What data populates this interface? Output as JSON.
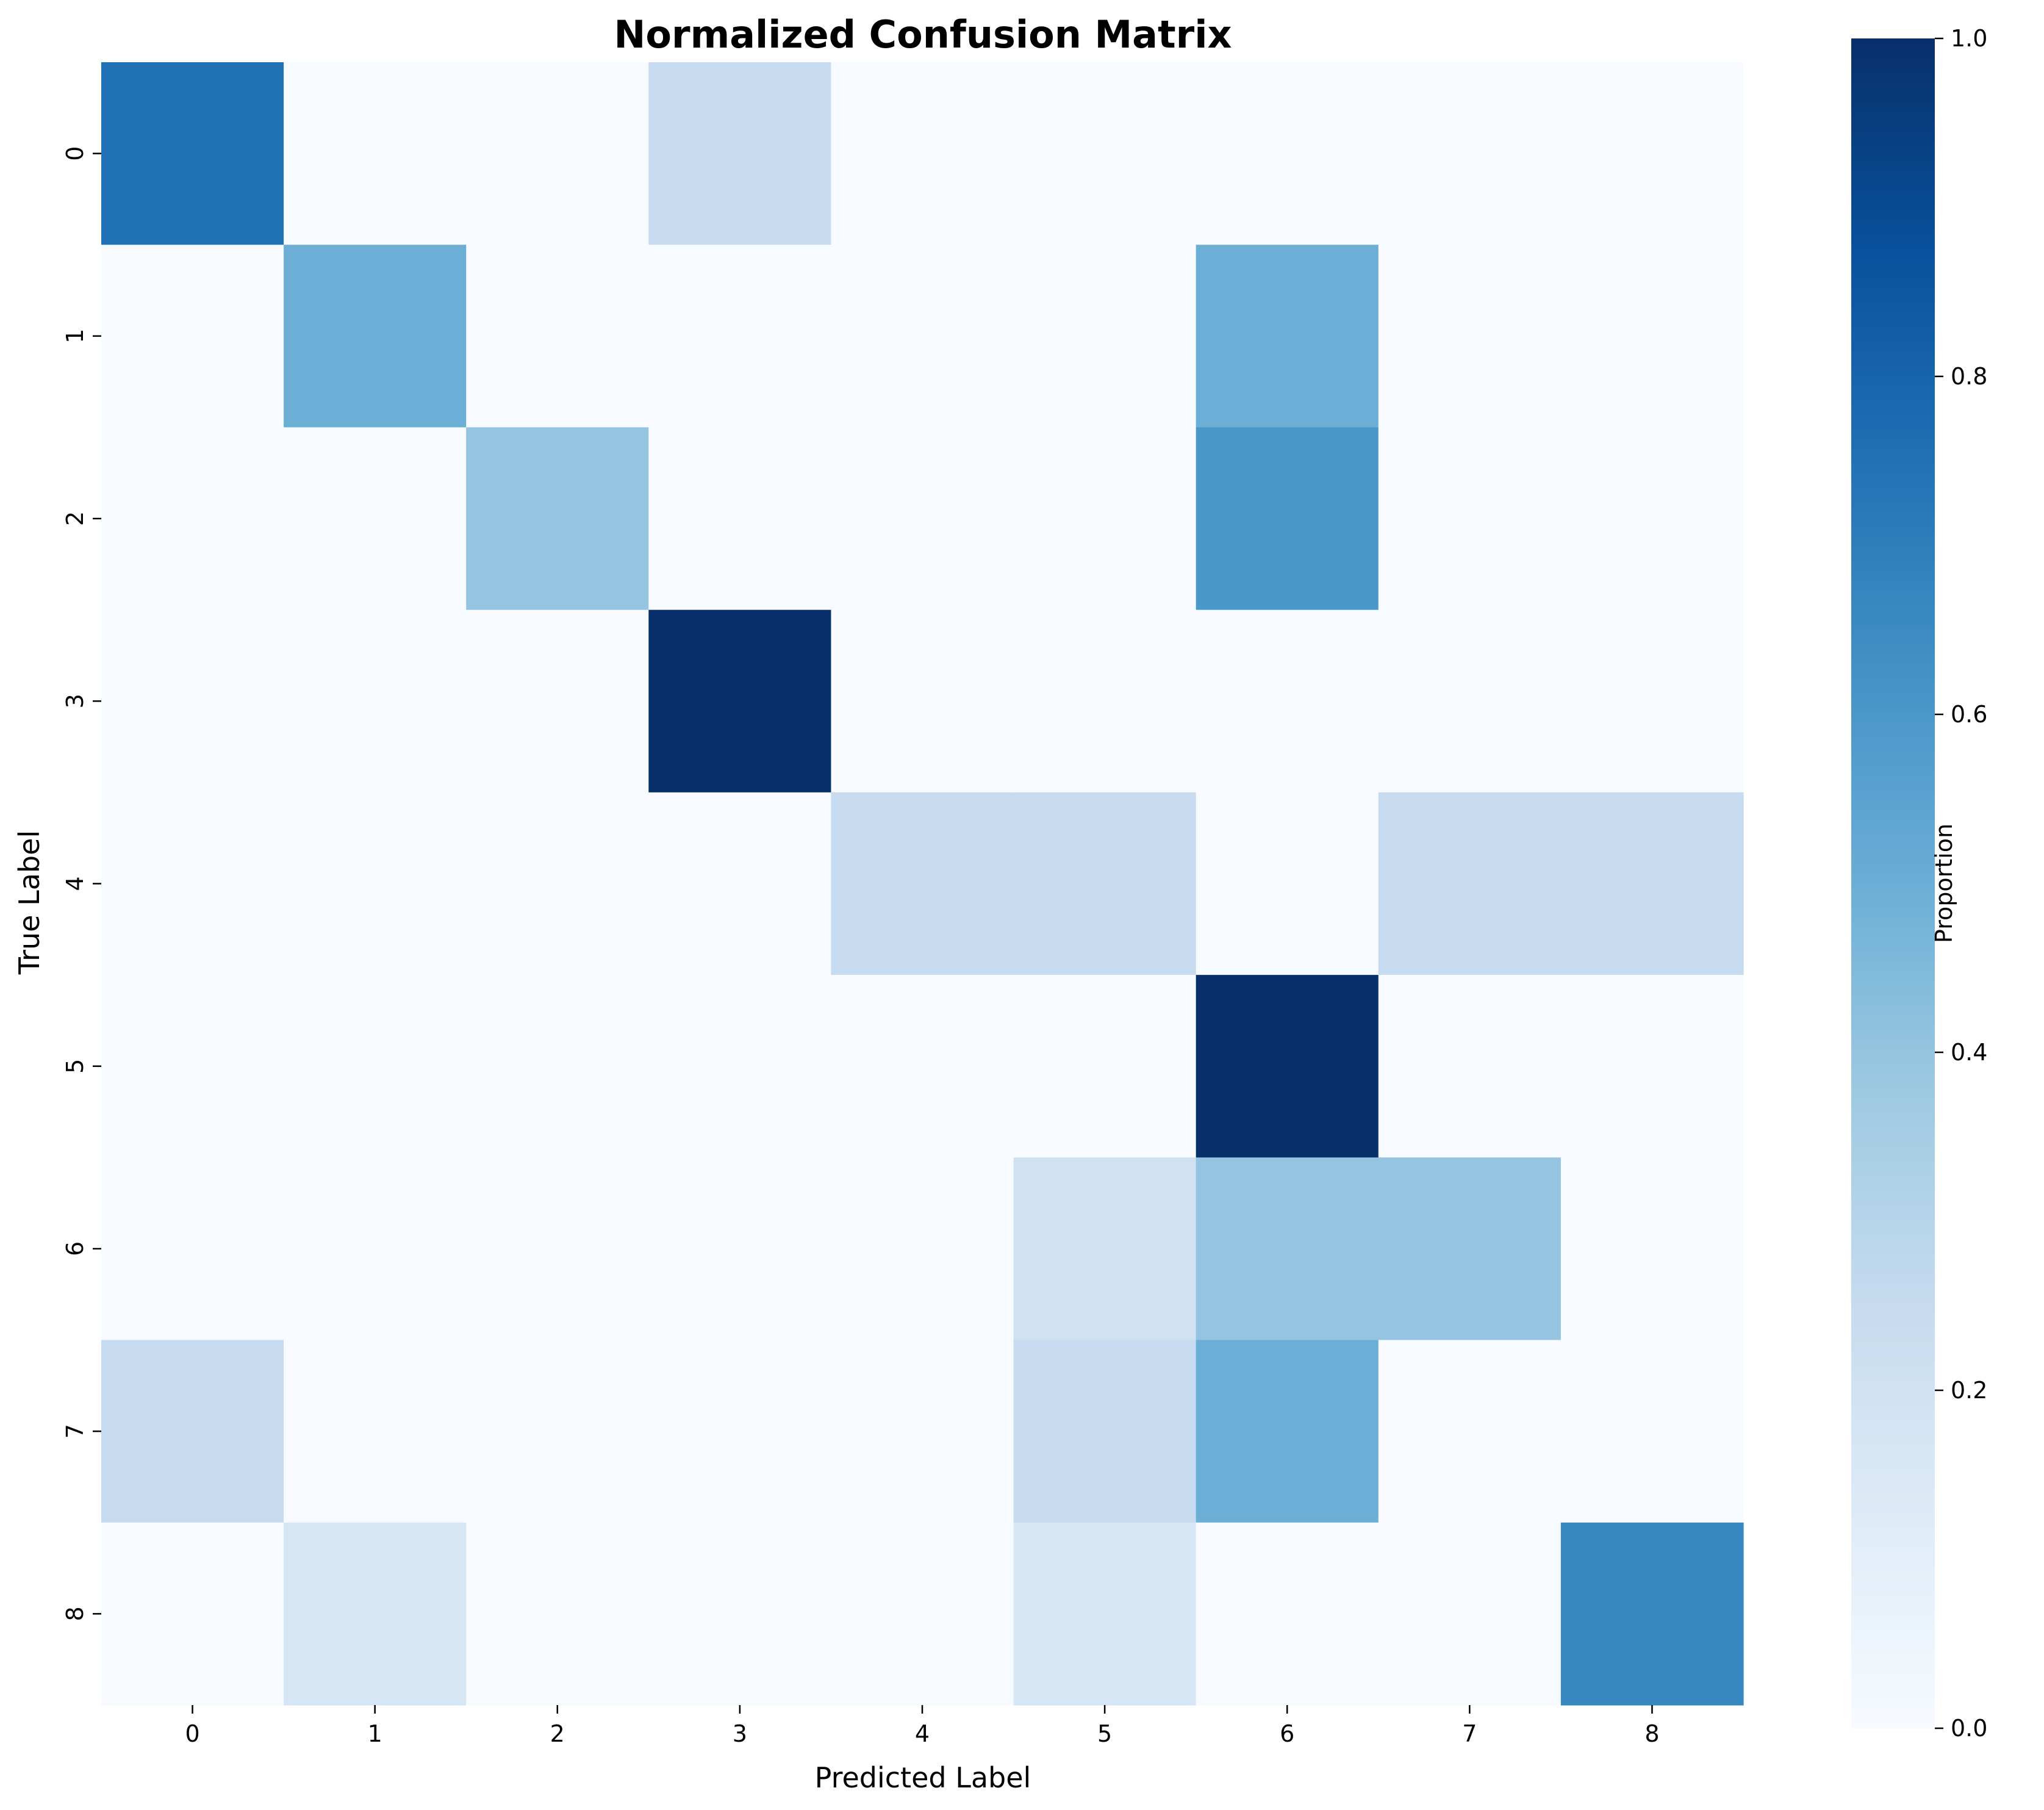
{
  "chart_data": {
    "type": "heatmap",
    "title": "Normalized Confusion Matrix",
    "xlabel": "Predicted Label",
    "ylabel": "True Label",
    "x_categories": [
      "0",
      "1",
      "2",
      "3",
      "4",
      "5",
      "6",
      "7",
      "8"
    ],
    "y_categories": [
      "0",
      "1",
      "2",
      "3",
      "4",
      "5",
      "6",
      "7",
      "8"
    ],
    "values": [
      [
        0.75,
        0,
        0,
        0.25,
        0,
        0,
        0,
        0,
        0
      ],
      [
        0,
        0.5,
        0,
        0,
        0,
        0,
        0.5,
        0,
        0
      ],
      [
        0,
        0,
        0.4,
        0,
        0,
        0,
        0.6,
        0,
        0
      ],
      [
        0,
        0,
        0,
        1.0,
        0,
        0,
        0,
        0,
        0
      ],
      [
        0,
        0,
        0,
        0,
        0.25,
        0.25,
        0,
        0.25,
        0.25
      ],
      [
        0,
        0,
        0,
        0,
        0,
        0,
        1.0,
        0,
        0
      ],
      [
        0,
        0,
        0,
        0,
        0,
        0.2,
        0.4,
        0.4,
        0
      ],
      [
        0.25,
        0,
        0,
        0,
        0,
        0.25,
        0.5,
        0,
        0
      ],
      [
        0,
        0.167,
        0,
        0,
        0,
        0.167,
        0,
        0,
        0.667
      ]
    ],
    "colorbar": {
      "label": "Proportion",
      "range": [
        0.0,
        1.0
      ],
      "ticks": [
        "0.0",
        "0.2",
        "0.4",
        "0.6",
        "0.8",
        "1.0"
      ],
      "colormap": "Blues"
    }
  }
}
